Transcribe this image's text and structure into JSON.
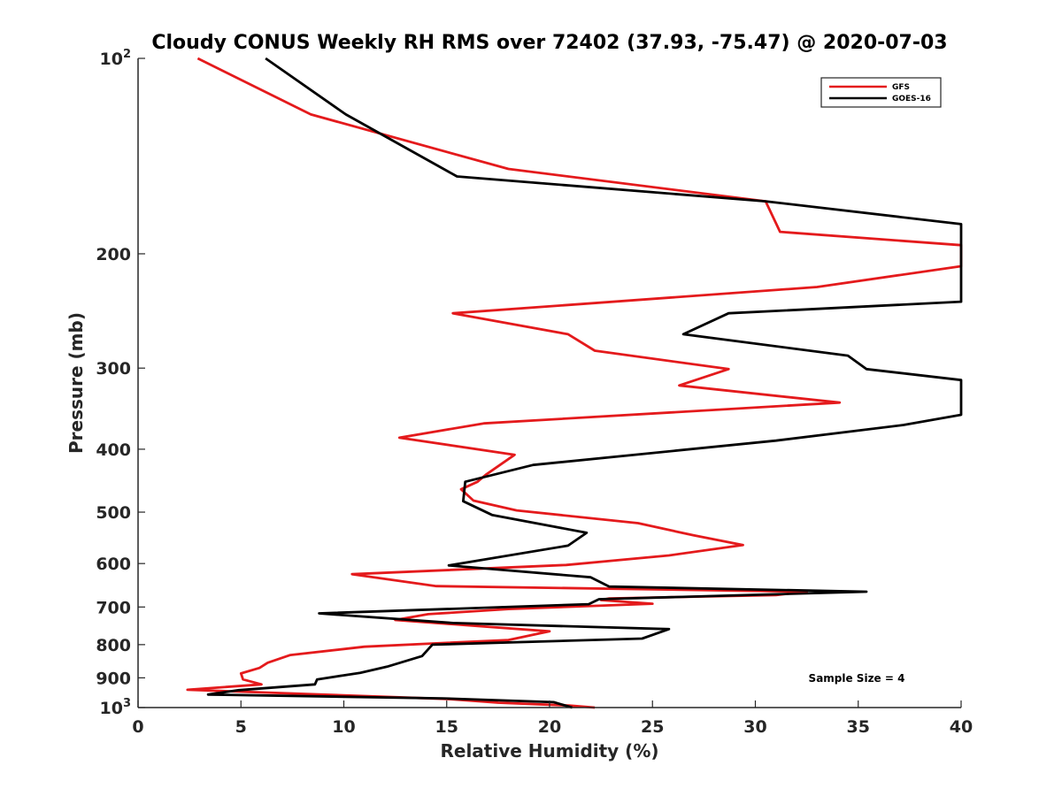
{
  "chart_data": {
    "type": "line",
    "title": "Cloudy CONUS Weekly RH RMS over 72402 (37.93, -75.47) @ 2020-07-03",
    "xlabel": "Relative Humidity (%)",
    "ylabel": "Pressure (mb)",
    "xlim": [
      0,
      40
    ],
    "ylim": [
      100,
      1000
    ],
    "y_scale": "log",
    "y_reversed": true,
    "x_ticks": [
      "0",
      "5",
      "10",
      "15",
      "20",
      "25",
      "30",
      "35",
      "40"
    ],
    "y_ticks": [
      {
        "value": 100,
        "label": "10",
        "sup": "2"
      },
      {
        "value": 200,
        "label": "200"
      },
      {
        "value": 300,
        "label": "300"
      },
      {
        "value": 400,
        "label": "400"
      },
      {
        "value": 500,
        "label": "500"
      },
      {
        "value": 600,
        "label": "600"
      },
      {
        "value": 700,
        "label": "700"
      },
      {
        "value": 800,
        "label": "800"
      },
      {
        "value": 900,
        "label": "900"
      },
      {
        "value": 1000,
        "label": "10",
        "sup": "3"
      }
    ],
    "grid": false,
    "legend_position": "top-right",
    "annotation": "Sample Size = 4",
    "series": [
      {
        "name": "GFS",
        "color": "#e41a1c",
        "points": [
          [
            2.9,
            100
          ],
          [
            8.4,
            122
          ],
          [
            18.0,
            148
          ],
          [
            30.5,
            166
          ],
          [
            31.2,
            185
          ],
          [
            40,
            194
          ],
          [
            40,
            209
          ],
          [
            33.0,
            225
          ],
          [
            15.3,
            247
          ],
          [
            20.9,
            266
          ],
          [
            22.2,
            282
          ],
          [
            28.7,
            301
          ],
          [
            26.3,
            319
          ],
          [
            34.1,
            339
          ],
          [
            16.8,
            365
          ],
          [
            12.7,
            384
          ],
          [
            18.3,
            408
          ],
          [
            16.9,
            438
          ],
          [
            16.5,
            449
          ],
          [
            15.7,
            461
          ],
          [
            16.3,
            480
          ],
          [
            18.4,
            497
          ],
          [
            24.3,
            520
          ],
          [
            27.0,
            543
          ],
          [
            29.4,
            562
          ],
          [
            25.8,
            583
          ],
          [
            20.8,
            603
          ],
          [
            10.4,
            623
          ],
          [
            14.5,
            650
          ],
          [
            32.5,
            663
          ],
          [
            31.0,
            671
          ],
          [
            22.9,
            679
          ],
          [
            22.5,
            683
          ],
          [
            25.0,
            692
          ],
          [
            18.0,
            705
          ],
          [
            14.1,
            718
          ],
          [
            12.5,
            733
          ],
          [
            20.0,
            763
          ],
          [
            18.0,
            787
          ],
          [
            11.0,
            806
          ],
          [
            7.4,
            830
          ],
          [
            6.3,
            853
          ],
          [
            5.9,
            869
          ],
          [
            5.0,
            886
          ],
          [
            5.1,
            905
          ],
          [
            6.0,
            921
          ],
          [
            2.4,
            939
          ],
          [
            15.0,
            970
          ],
          [
            17.5,
            983
          ],
          [
            21.0,
            993
          ],
          [
            22.2,
            1000
          ]
        ]
      },
      {
        "name": "GOES-16",
        "color": "#000000",
        "points": [
          [
            6.2,
            100
          ],
          [
            10.1,
            122
          ],
          [
            15.5,
            152
          ],
          [
            30.5,
            166
          ],
          [
            40,
            180
          ],
          [
            40,
            237
          ],
          [
            28.7,
            247
          ],
          [
            26.5,
            266
          ],
          [
            34.5,
            287
          ],
          [
            35.4,
            301
          ],
          [
            40,
            313
          ],
          [
            40,
            354
          ],
          [
            37.2,
            367
          ],
          [
            31.0,
            388
          ],
          [
            19.2,
            423
          ],
          [
            15.9,
            449
          ],
          [
            15.8,
            481
          ],
          [
            17.2,
            505
          ],
          [
            21.8,
            538
          ],
          [
            20.9,
            563
          ],
          [
            15.1,
            604
          ],
          [
            22.0,
            630
          ],
          [
            22.9,
            651
          ],
          [
            35.4,
            663
          ],
          [
            22.4,
            681
          ],
          [
            21.9,
            693
          ],
          [
            8.8,
            716
          ],
          [
            15.3,
            741
          ],
          [
            25.8,
            757
          ],
          [
            24.5,
            783
          ],
          [
            14.3,
            800
          ],
          [
            13.8,
            833
          ],
          [
            12.1,
            865
          ],
          [
            10.8,
            884
          ],
          [
            8.7,
            905
          ],
          [
            8.6,
            921
          ],
          [
            4.9,
            940
          ],
          [
            3.4,
            955
          ],
          [
            14.8,
            968
          ],
          [
            20.2,
            981
          ],
          [
            21.1,
            1000
          ]
        ]
      }
    ]
  }
}
